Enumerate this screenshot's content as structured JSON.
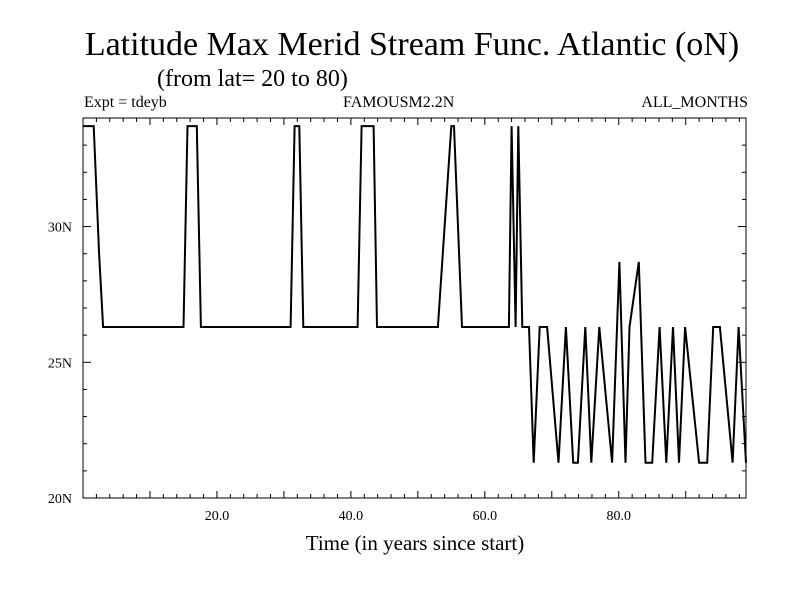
{
  "header": {
    "title": "Latitude Max Merid Stream Func. Atlantic (oN)",
    "subtitle": "(from lat= 20 to 80)",
    "left_label": "Expt = tdeyb",
    "center_label": "FAMOUSM2.2N",
    "right_label": "ALL_MONTHS"
  },
  "chart_data": {
    "type": "line",
    "title": "Latitude Max Merid Stream Func. Atlantic (oN)",
    "xlabel": "Time (in years since start)",
    "ylabel": "",
    "xlim": [
      0,
      99
    ],
    "ylim": [
      20,
      34
    ],
    "grid": false,
    "x_ticks": [
      20,
      40,
      60,
      80
    ],
    "x_tick_labels": [
      "20.0",
      "40.0",
      "60.0",
      "80.0"
    ],
    "y_ticks": [
      20,
      25,
      30
    ],
    "y_tick_labels": [
      "20N",
      "25N",
      "30N"
    ],
    "line_color": "#000000",
    "series": [
      {
        "x": [
          0,
          0.8,
          1,
          1.6,
          2.4,
          3,
          15,
          15.6,
          16,
          17,
          17.6,
          31,
          31.6,
          32.3,
          32.9,
          33.6,
          41,
          41.6,
          43.4,
          43.9,
          45.3,
          45.9,
          53,
          55.0,
          55.4,
          56.6,
          63.6,
          64.0,
          64.6,
          65.0,
          65.6,
          66.6,
          67.3,
          68.2,
          69.3,
          71.0,
          72.1,
          73.2,
          73.9,
          75.0,
          75.9,
          77.1,
          79.0,
          80.1,
          81.0,
          81.6,
          83.0,
          84.0,
          85.0,
          86.1,
          87.1,
          88.1,
          89.0,
          89.9,
          92.0,
          93.2,
          94.1,
          95.1,
          97.0,
          97.9,
          99
        ],
        "y": [
          33.7,
          33.7,
          33.7,
          33.7,
          29.0,
          26.3,
          26.3,
          33.7,
          33.7,
          33.7,
          26.3,
          26.3,
          33.7,
          33.7,
          26.3,
          26.3,
          26.3,
          33.7,
          33.7,
          26.3,
          26.3,
          26.3,
          26.3,
          33.7,
          33.7,
          26.3,
          26.3,
          33.7,
          26.3,
          33.7,
          26.3,
          26.3,
          21.3,
          26.3,
          26.3,
          21.3,
          26.3,
          21.3,
          21.3,
          26.3,
          21.3,
          26.3,
          21.3,
          28.7,
          21.3,
          26.3,
          28.7,
          21.3,
          21.3,
          26.3,
          21.3,
          26.3,
          21.3,
          26.3,
          21.3,
          21.3,
          26.3,
          26.3,
          21.3,
          26.3,
          21.3
        ]
      }
    ]
  }
}
